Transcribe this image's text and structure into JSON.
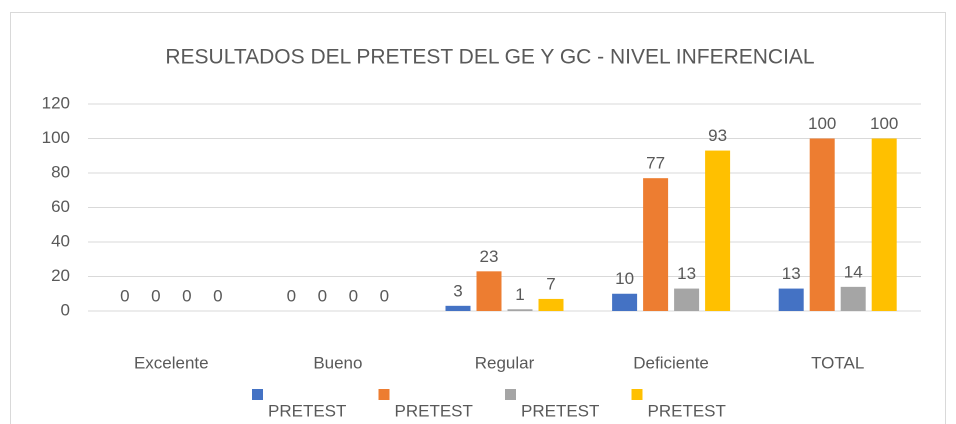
{
  "chart_data": {
    "type": "bar",
    "title": "RESULTADOS DEL PRETEST DEL GE Y GC - NIVEL INFERENCIAL",
    "categories": [
      "Excelente",
      "Bueno",
      "Regular",
      "Deficiente",
      "TOTAL"
    ],
    "series": [
      {
        "name": "PRETEST",
        "color": "#4472c4",
        "values": [
          0,
          0,
          3,
          10,
          13
        ]
      },
      {
        "name": "PRETEST",
        "color": "#ed7d31",
        "values": [
          0,
          0,
          23,
          77,
          100
        ]
      },
      {
        "name": "PRETEST",
        "color": "#a5a5a5",
        "values": [
          0,
          0,
          1,
          13,
          14
        ]
      },
      {
        "name": "PRETEST",
        "color": "#ffc000",
        "values": [
          0,
          0,
          7,
          93,
          100
        ]
      }
    ],
    "ylim": [
      0,
      120
    ],
    "yticks": [
      0,
      20,
      40,
      60,
      80,
      100,
      120
    ],
    "grid": true,
    "legend": "bottom"
  }
}
